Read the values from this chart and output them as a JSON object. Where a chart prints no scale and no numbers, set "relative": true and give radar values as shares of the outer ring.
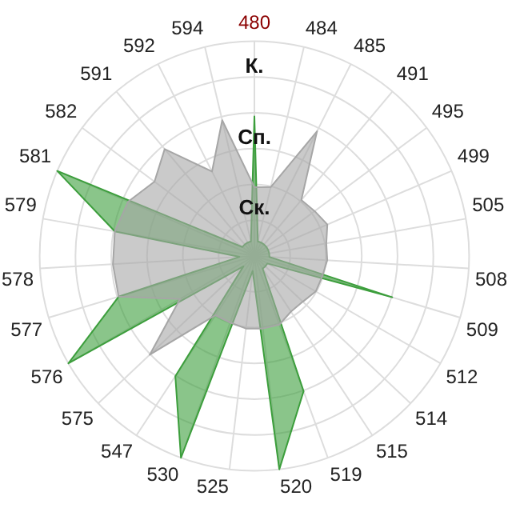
{
  "chart_data": {
    "type": "radar",
    "relative": true,
    "legend": false,
    "categories": [
      "480",
      "484",
      "485",
      "491",
      "495",
      "499",
      "505",
      "508",
      "509",
      "512",
      "514",
      "515",
      "519",
      "520",
      "525",
      "530",
      "547",
      "575",
      "576",
      "577",
      "578",
      "579",
      "581",
      "582",
      "591",
      "592",
      "594"
    ],
    "series": [
      {
        "color": "#a6a6a6",
        "values": [
          0.32,
          0.33,
          0.65,
          0.34,
          0.35,
          0.37,
          0.34,
          0.34,
          0.33,
          0.33,
          0.31,
          0.31,
          0.34,
          0.34,
          0.34,
          0.33,
          0.33,
          0.67,
          0.4,
          0.66,
          0.66,
          0.66,
          0.64,
          0.58,
          0.65,
          0.44,
          0.65
        ]
      },
      {
        "color": "#3c9e3c",
        "values": [
          0.65,
          0.07,
          0.07,
          0.07,
          0.07,
          0.07,
          0.07,
          0.07,
          0.67,
          0.07,
          0.07,
          0.07,
          0.67,
          1,
          0.07,
          1,
          0.67,
          0.07,
          1,
          0.66,
          0.07,
          0.66,
          1,
          0.07,
          0.07,
          0.07,
          0.07
        ]
      }
    ],
    "annotations": [
      "Ск.",
      "Сп.",
      "К."
    ]
  }
}
